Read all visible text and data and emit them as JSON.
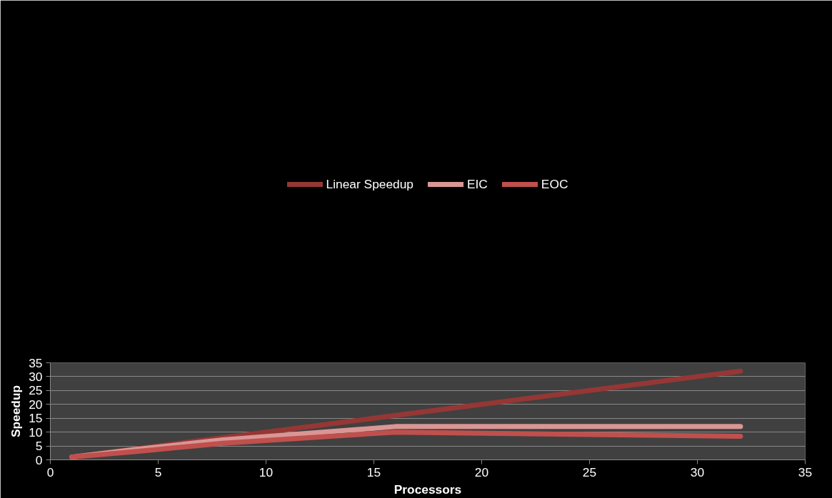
{
  "chart_data": {
    "type": "line",
    "xlabel": "Processors",
    "ylabel": "Speedup",
    "x": [
      1,
      4,
      8,
      16,
      32
    ],
    "series": [
      {
        "name": "Linear Speedup",
        "color": "#953735",
        "values": [
          1,
          4,
          8,
          16,
          32
        ]
      },
      {
        "name": "EIC",
        "color": "#d99694",
        "values": [
          1,
          3.8,
          7.2,
          12,
          12
        ]
      },
      {
        "name": "EOC",
        "color": "#c0504d",
        "values": [
          1,
          3,
          6,
          10,
          8.5
        ]
      }
    ],
    "xlim": [
      0,
      35
    ],
    "xticks": [
      0,
      5,
      10,
      15,
      20,
      25,
      30,
      35
    ],
    "ylim": [
      0,
      35
    ],
    "yticks": [
      0,
      5,
      10,
      15,
      20,
      25,
      30,
      35
    ],
    "grid": "y",
    "legend": "top",
    "marker": "none",
    "line_style": "solid"
  }
}
